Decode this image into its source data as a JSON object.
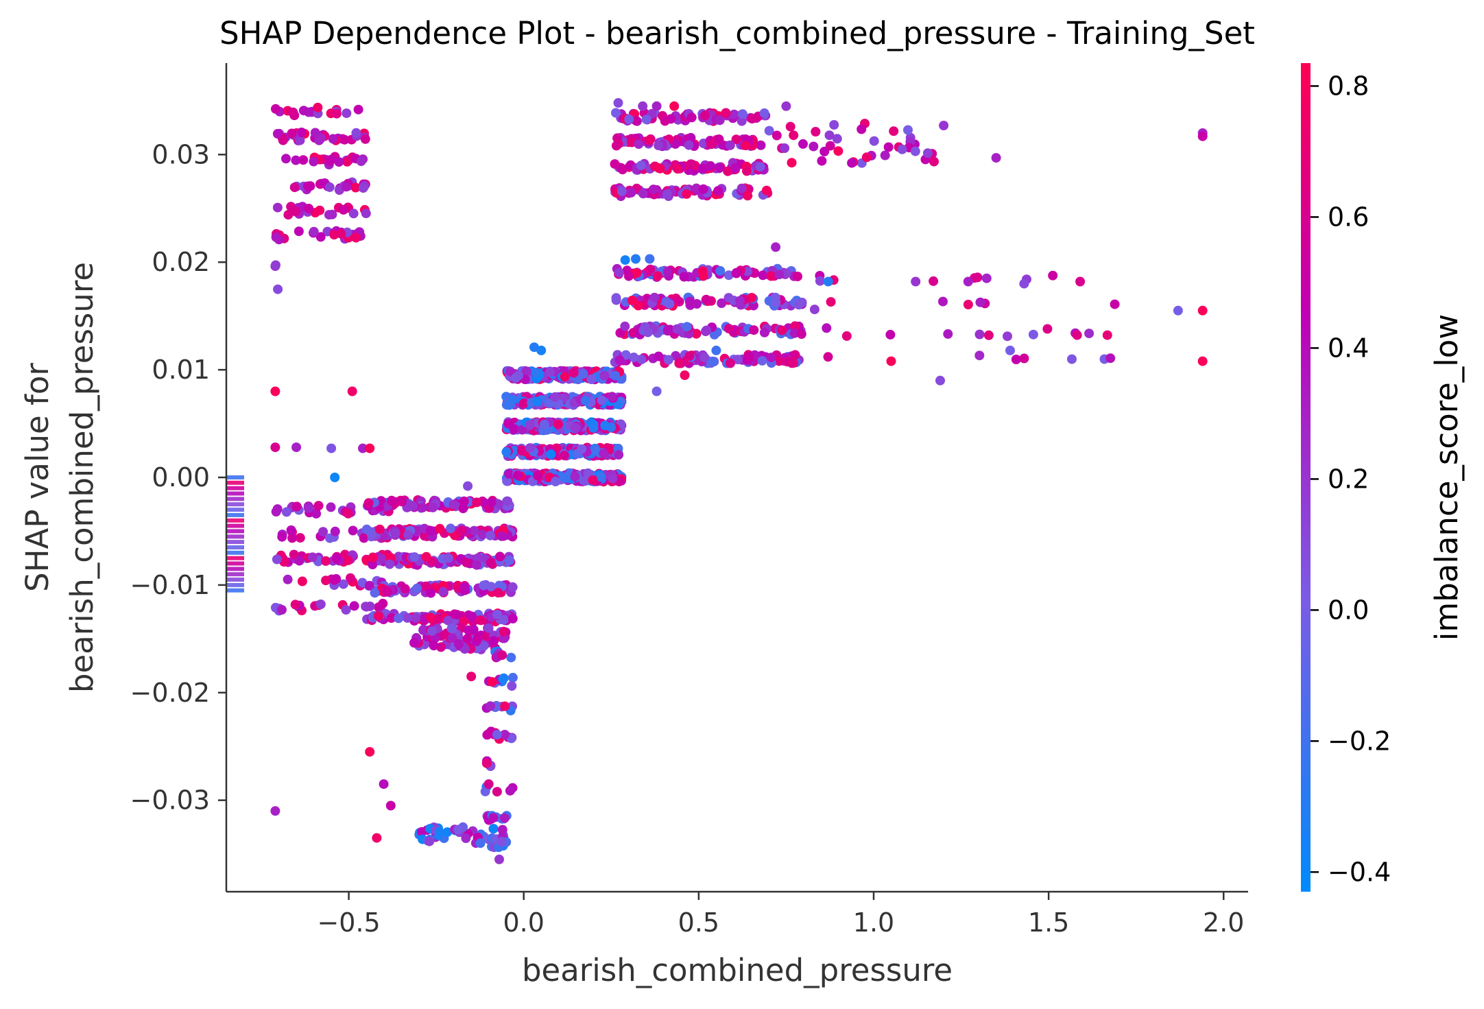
{
  "chart_data": {
    "type": "scatter",
    "title": "SHAP Dependence Plot - bearish_combined_pressure - Training_Set",
    "xlabel": "bearish_combined_pressure",
    "ylabel_line1": "SHAP value for",
    "ylabel_line2": "bearish_combined_pressure",
    "colorbar_label": "imbalance_score_low",
    "xlim": [
      -0.85,
      2.07
    ],
    "ylim": [
      -0.0385,
      0.0385
    ],
    "xticks": [
      -0.5,
      0.0,
      0.5,
      1.0,
      1.5,
      2.0
    ],
    "xtick_labels": [
      "−0.5",
      "0.0",
      "0.5",
      "1.0",
      "1.5",
      "2.0"
    ],
    "yticks": [
      -0.03,
      -0.02,
      -0.01,
      0.0,
      0.01,
      0.02,
      0.03
    ],
    "ytick_labels": [
      "−0.03",
      "−0.02",
      "−0.01",
      "0.00",
      "0.01",
      "0.02",
      "0.03"
    ],
    "colorbar_range": [
      -0.43,
      0.835
    ],
    "colorbar_ticks": [
      -0.4,
      -0.2,
      0.0,
      0.2,
      0.4,
      0.6,
      0.8
    ],
    "colorbar_tick_labels": [
      "−0.4",
      "−0.2",
      "0.0",
      "0.2",
      "0.4",
      "0.6",
      "0.8"
    ],
    "colormap": [
      "#008afb",
      "#7a5ce6",
      "#c000b4",
      "#ff0052"
    ],
    "nan_color": "#777777",
    "clusters": [
      {
        "x": [
          -0.71,
          -0.45
        ],
        "y": [
          0.0225,
          0.034
        ],
        "c": [
          0.1,
          0.8
        ],
        "n": 140
      },
      {
        "x": [
          -0.71,
          -0.7
        ],
        "y": [
          0.0175,
          0.0225
        ],
        "c": [
          0.0,
          0.4
        ],
        "n": 4
      },
      {
        "x": [
          -0.71,
          -0.38
        ],
        "y": [
          -0.012,
          -0.003
        ],
        "c": [
          0.0,
          0.8
        ],
        "n": 120
      },
      {
        "x": [
          -0.45,
          -0.03
        ],
        "y": [
          -0.013,
          -0.0025
        ],
        "c": [
          -0.1,
          0.8
        ],
        "n": 420
      },
      {
        "x": [
          -0.32,
          -0.05
        ],
        "y": [
          -0.016,
          -0.014
        ],
        "c": [
          0.0,
          0.7
        ],
        "n": 80
      },
      {
        "x": [
          -0.11,
          -0.03
        ],
        "y": [
          -0.034,
          -0.0165
        ],
        "c": [
          -0.4,
          0.8
        ],
        "n": 70
      },
      {
        "x": [
          -0.3,
          -0.05
        ],
        "y": [
          -0.034,
          -0.0325
        ],
        "c": [
          -0.4,
          0.6
        ],
        "n": 50
      },
      {
        "x": [
          -0.05,
          0.28
        ],
        "y": [
          0.0,
          0.0095
        ],
        "c": [
          -0.4,
          0.8
        ],
        "n": 1100
      },
      {
        "x": [
          0.26,
          0.7
        ],
        "y": [
          0.0265,
          0.0335
        ],
        "c": [
          0.0,
          0.8
        ],
        "n": 260
      },
      {
        "x": [
          0.7,
          1.2
        ],
        "y": [
          0.029,
          0.033
        ],
        "c": [
          0.0,
          0.8
        ],
        "n": 40
      },
      {
        "x": [
          0.26,
          0.8
        ],
        "y": [
          0.011,
          0.019
        ],
        "c": [
          -0.2,
          0.8
        ],
        "n": 320
      },
      {
        "x": [
          0.8,
          1.7
        ],
        "y": [
          0.011,
          0.0185
        ],
        "c": [
          0.0,
          0.8
        ],
        "n": 36
      }
    ],
    "points": [
      {
        "x": -0.54,
        "y": 0.0,
        "c": -0.38
      },
      {
        "x": -0.71,
        "y": 0.008,
        "c": 0.8
      },
      {
        "x": -0.49,
        "y": 0.008,
        "c": 0.75
      },
      {
        "x": -0.71,
        "y": 0.0028,
        "c": 0.6
      },
      {
        "x": -0.65,
        "y": 0.0028,
        "c": 0.3
      },
      {
        "x": -0.55,
        "y": 0.0027,
        "c": 0.05
      },
      {
        "x": -0.46,
        "y": 0.0027,
        "c": 0.3
      },
      {
        "x": -0.44,
        "y": 0.0027,
        "c": 0.8
      },
      {
        "x": -0.44,
        "y": -0.0255,
        "c": 0.8
      },
      {
        "x": -0.4,
        "y": -0.0285,
        "c": 0.4
      },
      {
        "x": -0.38,
        "y": -0.0305,
        "c": 0.5
      },
      {
        "x": -0.42,
        "y": -0.0335,
        "c": 0.75
      },
      {
        "x": -0.71,
        "y": -0.031,
        "c": 0.3
      },
      {
        "x": -0.1,
        "y": -0.0285,
        "c": 0.6
      },
      {
        "x": -0.07,
        "y": -0.0355,
        "c": 0.2
      },
      {
        "x": -0.15,
        "y": -0.0185,
        "c": 0.7
      },
      {
        "x": -0.09,
        "y": -0.019,
        "c": 0.8
      },
      {
        "x": -0.16,
        "y": -0.0008,
        "c": 0.1
      },
      {
        "x": 0.27,
        "y": 0.0348,
        "c": 0.1
      },
      {
        "x": 0.34,
        "y": 0.0345,
        "c": 0.2
      },
      {
        "x": 0.38,
        "y": 0.0345,
        "c": 0.3
      },
      {
        "x": 0.43,
        "y": 0.0345,
        "c": 0.8
      },
      {
        "x": 0.75,
        "y": 0.0345,
        "c": 0.2
      },
      {
        "x": 1.2,
        "y": 0.0327,
        "c": 0.2
      },
      {
        "x": 1.35,
        "y": 0.0297,
        "c": 0.3
      },
      {
        "x": 1.94,
        "y": 0.032,
        "c": 0.3
      },
      {
        "x": 1.94,
        "y": 0.0317,
        "c": 0.5
      },
      {
        "x": 0.29,
        "y": 0.0202,
        "c": -0.35
      },
      {
        "x": 0.32,
        "y": 0.0203,
        "c": -0.3
      },
      {
        "x": 0.36,
        "y": 0.0203,
        "c": -0.2
      },
      {
        "x": 0.72,
        "y": 0.0214,
        "c": 0.3
      },
      {
        "x": 0.87,
        "y": 0.0182,
        "c": -0.3
      },
      {
        "x": 1.12,
        "y": 0.0182,
        "c": 0.2
      },
      {
        "x": 1.27,
        "y": 0.0182,
        "c": 0.3
      },
      {
        "x": 1.43,
        "y": 0.018,
        "c": 0.1
      },
      {
        "x": 1.59,
        "y": 0.0182,
        "c": 0.6
      },
      {
        "x": 1.87,
        "y": 0.0155,
        "c": 0.0
      },
      {
        "x": 1.94,
        "y": 0.0155,
        "c": 0.8
      },
      {
        "x": 1.94,
        "y": 0.0108,
        "c": 0.8
      },
      {
        "x": 1.39,
        "y": 0.0118,
        "c": 0.0
      },
      {
        "x": 1.19,
        "y": 0.009,
        "c": 0.1
      },
      {
        "x": 1.05,
        "y": 0.0108,
        "c": 0.8
      },
      {
        "x": 0.55,
        "y": 0.0118,
        "c": -0.2
      },
      {
        "x": 0.46,
        "y": 0.0095,
        "c": 0.75
      },
      {
        "x": 0.38,
        "y": 0.008,
        "c": 0.0
      },
      {
        "x": 0.03,
        "y": 0.0121,
        "c": -0.3
      },
      {
        "x": 0.05,
        "y": 0.0118,
        "c": -0.35
      }
    ]
  }
}
